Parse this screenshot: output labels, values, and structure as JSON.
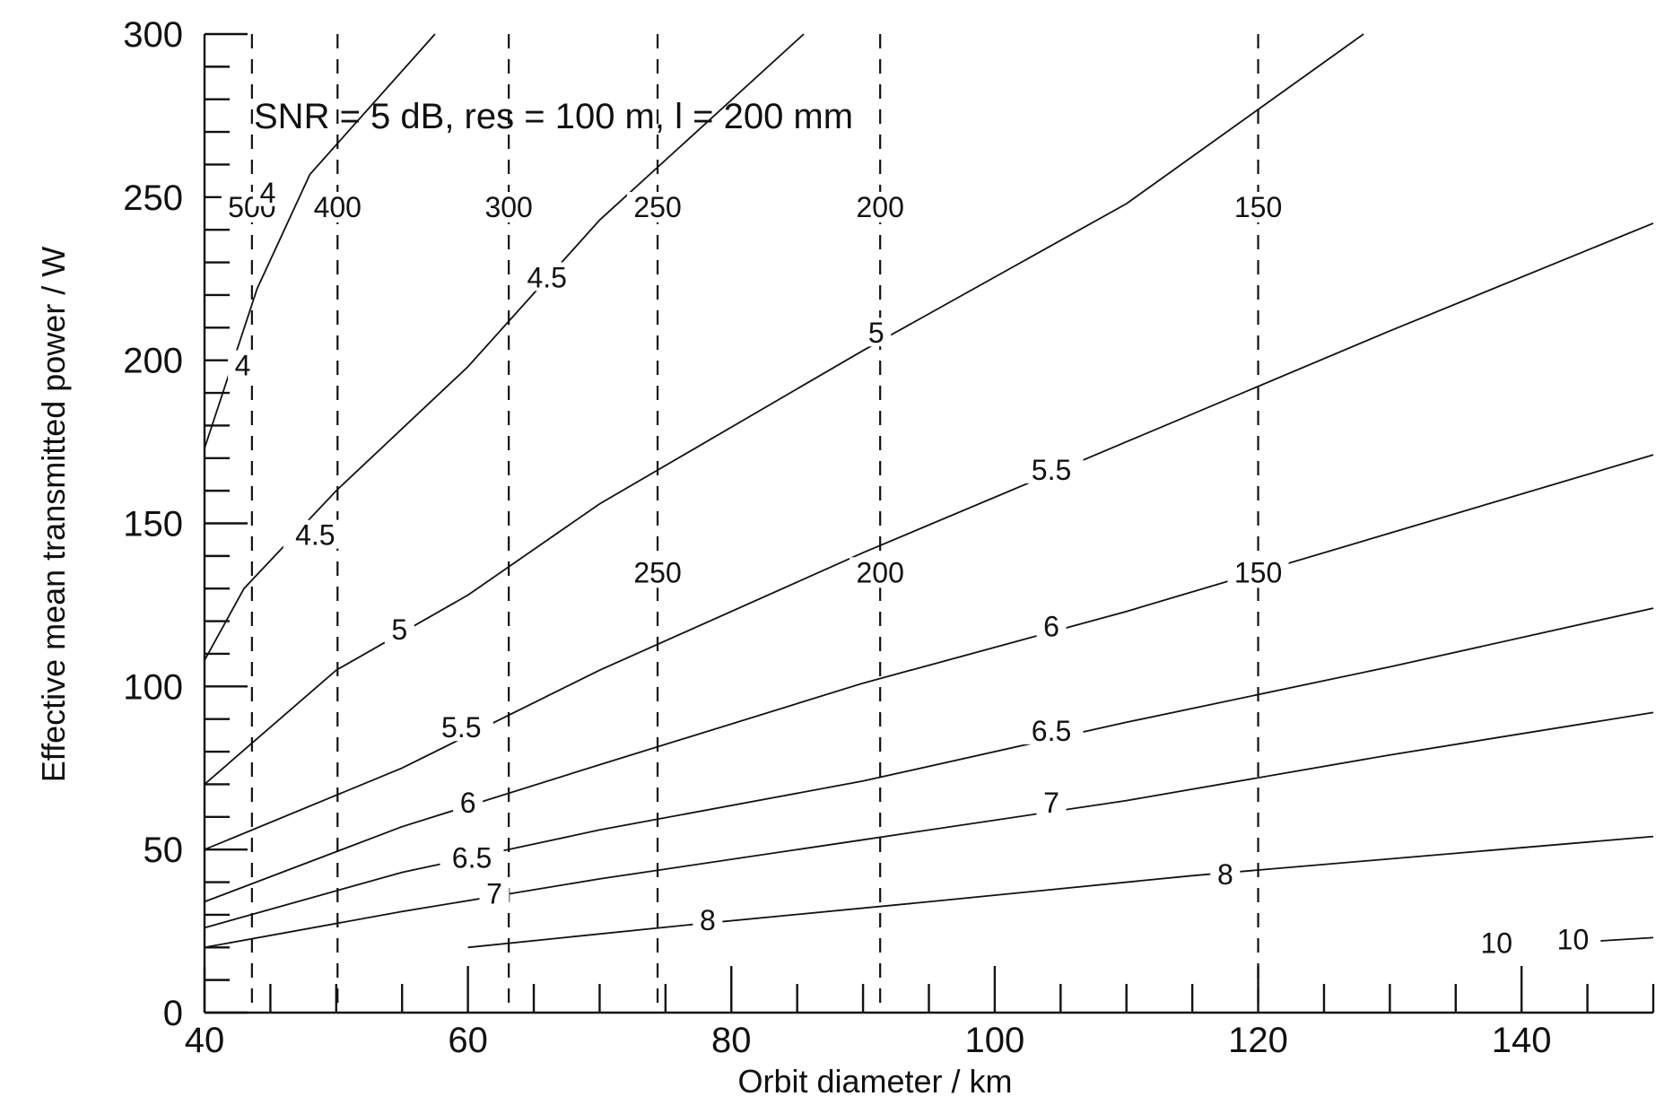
{
  "chart_data": {
    "type": "line",
    "title": "",
    "annotation": "SNR =   5 dB, res =  100 m, l = 200 mm",
    "xlabel": "Orbit diameter / km",
    "ylabel": "Effective mean transmitted power / W",
    "xlim": [
      40,
      150
    ],
    "ylim": [
      0,
      300
    ],
    "x_ticks": [
      40,
      60,
      80,
      100,
      120,
      140
    ],
    "y_ticks": [
      0,
      50,
      100,
      150,
      200,
      250,
      300
    ],
    "grid": false,
    "legend": "none",
    "series": [
      {
        "label": "4",
        "points": [
          [
            40,
            173
          ],
          [
            44,
            222
          ],
          [
            48,
            257
          ],
          [
            57.5,
            300
          ]
        ]
      },
      {
        "label": "4.5",
        "points": [
          [
            40,
            108
          ],
          [
            43,
            130
          ],
          [
            50,
            160
          ],
          [
            60,
            198
          ],
          [
            70,
            243
          ],
          [
            85.5,
            300
          ]
        ]
      },
      {
        "label": "5",
        "points": [
          [
            40,
            70
          ],
          [
            50,
            105
          ],
          [
            60,
            128
          ],
          [
            70,
            156
          ],
          [
            90,
            203
          ],
          [
            110,
            248
          ],
          [
            128,
            300
          ]
        ]
      },
      {
        "label": "5.5",
        "points": [
          [
            40,
            50
          ],
          [
            55,
            75
          ],
          [
            70,
            105
          ],
          [
            90,
            141
          ],
          [
            110,
            175
          ],
          [
            130,
            209
          ],
          [
            150,
            242
          ]
        ]
      },
      {
        "label": "6",
        "points": [
          [
            40,
            34
          ],
          [
            55,
            57
          ],
          [
            70,
            76
          ],
          [
            90,
            101
          ],
          [
            110,
            123
          ],
          [
            130,
            147
          ],
          [
            150,
            171
          ]
        ]
      },
      {
        "label": "6.5",
        "points": [
          [
            40,
            26
          ],
          [
            55,
            43
          ],
          [
            70,
            56
          ],
          [
            90,
            71
          ],
          [
            110,
            89
          ],
          [
            130,
            106
          ],
          [
            150,
            124
          ]
        ]
      },
      {
        "label": "7",
        "points": [
          [
            40,
            20
          ],
          [
            55,
            31
          ],
          [
            70,
            41
          ],
          [
            90,
            53
          ],
          [
            110,
            65
          ],
          [
            130,
            79
          ],
          [
            150,
            92
          ]
        ]
      },
      {
        "label": "8",
        "points": [
          [
            60,
            20
          ],
          [
            77,
            27
          ],
          [
            95,
            34
          ],
          [
            115,
            42
          ],
          [
            150,
            54
          ]
        ]
      },
      {
        "label": "10",
        "points": [
          [
            146,
            22
          ],
          [
            150,
            23
          ]
        ]
      }
    ],
    "contour_labels": [
      {
        "text": "4",
        "x": 44.8,
        "y": 250
      },
      {
        "text": "4",
        "x": 42.9,
        "y": 197
      },
      {
        "text": "4.5",
        "x": 66,
        "y": 224
      },
      {
        "text": "4.5",
        "x": 48.4,
        "y": 145
      },
      {
        "text": "5",
        "x": 91,
        "y": 207
      },
      {
        "text": "5",
        "x": 54.8,
        "y": 116
      },
      {
        "text": "5.5",
        "x": 104.3,
        "y": 165
      },
      {
        "text": "5.5",
        "x": 59.5,
        "y": 86
      },
      {
        "text": "6",
        "x": 104.3,
        "y": 117
      },
      {
        "text": "6",
        "x": 60,
        "y": 63
      },
      {
        "text": "6.5",
        "x": 104.3,
        "y": 85
      },
      {
        "text": "6.5",
        "x": 60.3,
        "y": 46
      },
      {
        "text": "7",
        "x": 104.3,
        "y": 63
      },
      {
        "text": "7",
        "x": 62,
        "y": 35
      },
      {
        "text": "8",
        "x": 117.5,
        "y": 41
      },
      {
        "text": "8",
        "x": 78.2,
        "y": 27
      },
      {
        "text": "10",
        "x": 138.1,
        "y": 20
      },
      {
        "text": "10",
        "x": 143.9,
        "y": 21
      }
    ],
    "reference_lines": [
      {
        "x": 43.6,
        "labels": [
          {
            "text": "500",
            "y": 245
          }
        ]
      },
      {
        "x": 50.1,
        "labels": [
          {
            "text": "400",
            "y": 245
          }
        ]
      },
      {
        "x": 63.1,
        "labels": [
          {
            "text": "300",
            "y": 245
          }
        ]
      },
      {
        "x": 74.4,
        "labels": [
          {
            "text": "250",
            "y": 245
          },
          {
            "text": "250",
            "y": 133
          }
        ]
      },
      {
        "x": 91.3,
        "labels": [
          {
            "text": "200",
            "y": 245
          },
          {
            "text": "200",
            "y": 133
          }
        ]
      },
      {
        "x": 120,
        "labels": [
          {
            "text": "150",
            "y": 245
          },
          {
            "text": "150",
            "y": 133
          }
        ]
      }
    ],
    "minor_x_step": 5,
    "minor_y_step": 10
  }
}
